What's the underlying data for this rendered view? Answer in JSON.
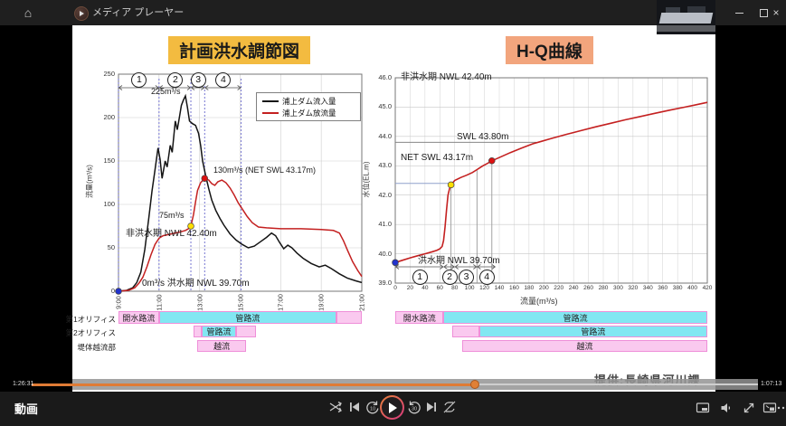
{
  "window": {
    "title": "メディア プレーヤー",
    "titlebar_icons": [
      "home-icon",
      "app-icon"
    ],
    "window_icons": [
      "minimize-icon",
      "maximize-icon",
      "close-icon"
    ]
  },
  "player": {
    "section_label": "動画",
    "elapsed": "1:26:31",
    "remaining": "1:07:13",
    "progress_percent": 61,
    "credit_overlay": "提供:長崎県河川課",
    "transport_icons": [
      "shuffle-icon",
      "previous-icon",
      "rewind-10-icon",
      "play-icon",
      "forward-30-icon",
      "next-icon",
      "repeat-off-icon"
    ],
    "right_icons": [
      "miniplayer-icon",
      "volume-icon",
      "fullscreen-icon",
      "pip-icon",
      "more-icon"
    ],
    "accent_color": "#e08036"
  },
  "colors": {
    "bar_pink": "#fac9ef",
    "bar_cyan": "#82e7f2",
    "bar_border": "#ef8fd9",
    "left_title_bg": "#f3bb40",
    "right_title_bg": "#f2a57d"
  },
  "chart_data": [
    {
      "type": "line",
      "title": "計画洪水調節図",
      "ylabel": "流量(m³/s)",
      "ylim": [
        0,
        250
      ],
      "y_ticks": [
        0,
        50,
        100,
        150,
        200,
        250
      ],
      "x_ticks": [
        "9:00",
        "11:00",
        "13:00",
        "15:00",
        "17:00",
        "19:00",
        "21:00"
      ],
      "x_range_hours": [
        9,
        21
      ],
      "series": [
        {
          "name": "浦上ダム流入量",
          "color": "#141414",
          "points": [
            [
              9,
              0
            ],
            [
              9.4,
              1
            ],
            [
              9.7,
              4
            ],
            [
              9.9,
              10
            ],
            [
              10.1,
              22
            ],
            [
              10.3,
              48
            ],
            [
              10.5,
              85
            ],
            [
              10.65,
              115
            ],
            [
              10.8,
              140
            ],
            [
              10.95,
              165
            ],
            [
              11.05,
              152
            ],
            [
              11.15,
              130
            ],
            [
              11.3,
              150
            ],
            [
              11.4,
              143
            ],
            [
              11.55,
              168
            ],
            [
              11.65,
              160
            ],
            [
              11.8,
              196
            ],
            [
              11.9,
              186
            ],
            [
              12.0,
              200
            ],
            [
              12.1,
              214
            ],
            [
              12.2,
              220
            ],
            [
              12.3,
              225
            ],
            [
              12.4,
              212
            ],
            [
              12.5,
              196
            ],
            [
              12.65,
              193
            ],
            [
              12.8,
              191
            ],
            [
              12.95,
              182
            ],
            [
              13.05,
              168
            ],
            [
              13.15,
              150
            ],
            [
              13.3,
              133
            ],
            [
              13.45,
              118
            ],
            [
              13.6,
              105
            ],
            [
              13.8,
              93
            ],
            [
              14.0,
              84
            ],
            [
              14.2,
              76
            ],
            [
              14.5,
              66
            ],
            [
              14.8,
              59
            ],
            [
              15.1,
              54
            ],
            [
              15.4,
              50
            ],
            [
              15.7,
              52
            ],
            [
              16.0,
              57
            ],
            [
              16.3,
              62
            ],
            [
              16.55,
              67
            ],
            [
              16.75,
              64
            ],
            [
              16.95,
              56
            ],
            [
              17.15,
              49
            ],
            [
              17.35,
              53
            ],
            [
              17.55,
              50
            ],
            [
              17.8,
              44
            ],
            [
              18.1,
              38
            ],
            [
              18.5,
              32
            ],
            [
              18.9,
              28
            ],
            [
              19.2,
              30
            ],
            [
              19.5,
              26
            ],
            [
              19.9,
              20
            ],
            [
              20.3,
              15
            ],
            [
              20.7,
              12
            ],
            [
              21,
              10
            ]
          ]
        },
        {
          "name": "浦上ダム放流量",
          "color": "#c42020",
          "points": [
            [
              9,
              0
            ],
            [
              9.5,
              1
            ],
            [
              9.8,
              4
            ],
            [
              10.0,
              9
            ],
            [
              10.2,
              16
            ],
            [
              10.4,
              28
            ],
            [
              10.6,
              42
            ],
            [
              10.8,
              54
            ],
            [
              11.0,
              61
            ],
            [
              11.2,
              64
            ],
            [
              11.6,
              66
            ],
            [
              12.0,
              68
            ],
            [
              12.3,
              70
            ],
            [
              12.45,
              72
            ],
            [
              12.57,
              75
            ],
            [
              12.7,
              88
            ],
            [
              12.8,
              103
            ],
            [
              12.9,
              116
            ],
            [
              13.05,
              125
            ],
            [
              13.25,
              130
            ],
            [
              13.45,
              128
            ],
            [
              13.6,
              124
            ],
            [
              13.75,
              122
            ],
            [
              13.9,
              126
            ],
            [
              14.1,
              128
            ],
            [
              14.3,
              125
            ],
            [
              14.5,
              119
            ],
            [
              14.7,
              111
            ],
            [
              14.9,
              102
            ],
            [
              15.1,
              95
            ],
            [
              15.35,
              86
            ],
            [
              15.6,
              79
            ],
            [
              15.9,
              74
            ],
            [
              16.3,
              73
            ],
            [
              17.0,
              72
            ],
            [
              18.0,
              72
            ],
            [
              19.0,
              71
            ],
            [
              19.6,
              70
            ],
            [
              19.9,
              67
            ],
            [
              20.1,
              58
            ],
            [
              20.3,
              47
            ],
            [
              20.55,
              34
            ],
            [
              20.8,
              24
            ],
            [
              21,
              17
            ]
          ]
        }
      ],
      "markers": [
        {
          "x": 9,
          "y": 0,
          "color": "#2233cc"
        },
        {
          "x": 12.57,
          "y": 75,
          "color": "#ffdf00"
        },
        {
          "x": 13.25,
          "y": 130,
          "color": "#dd1111"
        }
      ],
      "region_boundaries_hours": [
        9,
        11,
        12.57,
        13.25,
        15.05
      ],
      "region_labels": [
        "1",
        "2",
        "3",
        "4"
      ],
      "annotations": [
        "225m³/s",
        "130m³/s (NET SWL 43.17m)",
        "75m³/s",
        "非洪水期 NWL 42.40m",
        "0m³/s 洪水期 NWL 39.70m"
      ],
      "flow_rows": [
        {
          "label": "第1オリフィス",
          "segments": [
            {
              "text": "開水路流",
              "style": "pink",
              "from": 9,
              "to": 11
            },
            {
              "text": "管路流",
              "style": "cyan",
              "from": 11,
              "to": 19.75
            },
            {
              "text": "",
              "style": "pink",
              "from": 19.75,
              "to": 21
            }
          ]
        },
        {
          "label": "第2オリフィス",
          "segments": [
            {
              "text": "",
              "style": "pink",
              "from": 12.7,
              "to": 13.1
            },
            {
              "text": "管路流",
              "style": "cyan",
              "from": 13.1,
              "to": 14.8
            },
            {
              "text": "",
              "style": "pink",
              "from": 14.8,
              "to": 15.8
            }
          ]
        },
        {
          "label": "堤体越流部",
          "segments": [
            {
              "text": "越流",
              "style": "pink",
              "from": 12.88,
              "to": 15.3
            }
          ]
        }
      ]
    },
    {
      "type": "line",
      "title": "H-Q曲線",
      "xlabel": "流量(m³/s)",
      "ylabel": "水位(EL.m)",
      "xlim": [
        0,
        420
      ],
      "x_ticks": [
        0,
        20,
        40,
        60,
        80,
        100,
        120,
        140,
        160,
        180,
        200,
        220,
        240,
        260,
        280,
        300,
        320,
        340,
        360,
        380,
        400,
        420
      ],
      "ylim": [
        39.0,
        46.0
      ],
      "y_ticks": [
        39.0,
        40.0,
        41.0,
        42.0,
        43.0,
        44.0,
        45.0,
        46.0
      ],
      "curve": {
        "name": "H-Q",
        "color": "#c42020",
        "points": [
          [
            0,
            39.7
          ],
          [
            10,
            39.78
          ],
          [
            20,
            39.86
          ],
          [
            30,
            39.93
          ],
          [
            40,
            40.0
          ],
          [
            50,
            40.07
          ],
          [
            56,
            40.12
          ],
          [
            60,
            40.17
          ],
          [
            63,
            40.25
          ],
          [
            65,
            40.45
          ],
          [
            67,
            40.9
          ],
          [
            69,
            41.5
          ],
          [
            71,
            42.0
          ],
          [
            73,
            42.22
          ],
          [
            75,
            42.35
          ],
          [
            80,
            42.5
          ],
          [
            88,
            42.6
          ],
          [
            96,
            42.68
          ],
          [
            104,
            42.77
          ],
          [
            110,
            42.87
          ],
          [
            113,
            42.92
          ],
          [
            118,
            43.0
          ],
          [
            124,
            43.08
          ],
          [
            130,
            43.17
          ],
          [
            140,
            43.28
          ],
          [
            155,
            43.45
          ],
          [
            170,
            43.6
          ],
          [
            185,
            43.75
          ],
          [
            195,
            43.82
          ],
          [
            210,
            43.93
          ],
          [
            230,
            44.07
          ],
          [
            250,
            44.2
          ],
          [
            270,
            44.33
          ],
          [
            290,
            44.45
          ],
          [
            310,
            44.57
          ],
          [
            330,
            44.68
          ],
          [
            350,
            44.79
          ],
          [
            370,
            44.9
          ],
          [
            390,
            45.0
          ],
          [
            405,
            45.08
          ],
          [
            420,
            45.16
          ]
        ]
      },
      "markers": [
        {
          "x": 0,
          "y": 39.7,
          "color": "#2233cc"
        },
        {
          "x": 75,
          "y": 42.35,
          "color": "#ffdf00"
        },
        {
          "x": 130,
          "y": 43.17,
          "color": "#dd1111"
        }
      ],
      "ref_lines": [
        {
          "type": "h",
          "y": 42.4,
          "from": 0,
          "to": 75,
          "color": "#8fa0cc"
        },
        {
          "type": "h",
          "y": 43.8,
          "from": 0,
          "to": 190,
          "color": "#777777"
        },
        {
          "type": "v",
          "x": 75,
          "from": 39.0,
          "to": 42.35,
          "color": "#999999"
        },
        {
          "type": "v",
          "x": 110,
          "from": 39.0,
          "to": 42.87,
          "color": "#999999"
        },
        {
          "type": "v",
          "x": 130,
          "from": 39.0,
          "to": 43.17,
          "color": "#999999"
        }
      ],
      "region_boundaries": [
        0,
        65,
        80,
        110,
        135
      ],
      "region_labels": [
        "1",
        "2",
        "3",
        "4"
      ],
      "annotations": [
        "非洪水期 NWL 42.40m",
        "SWL 43.80m",
        "NET SWL 43.17m",
        "洪水期 NWL 39.70m"
      ],
      "flow_rows": [
        {
          "label": "",
          "segments": [
            {
              "text": "開水路流",
              "style": "pink",
              "from": 0,
              "to": 65
            },
            {
              "text": "管路流",
              "style": "cyan",
              "from": 65,
              "to": 420
            }
          ]
        },
        {
          "label": "",
          "segments": [
            {
              "text": "",
              "style": "pink",
              "from": 77,
              "to": 113
            },
            {
              "text": "管路流",
              "style": "cyan",
              "from": 113,
              "to": 420
            }
          ]
        },
        {
          "label": "",
          "segments": [
            {
              "text": "越流",
              "style": "pink",
              "from": 90,
              "to": 420
            }
          ]
        }
      ]
    }
  ]
}
